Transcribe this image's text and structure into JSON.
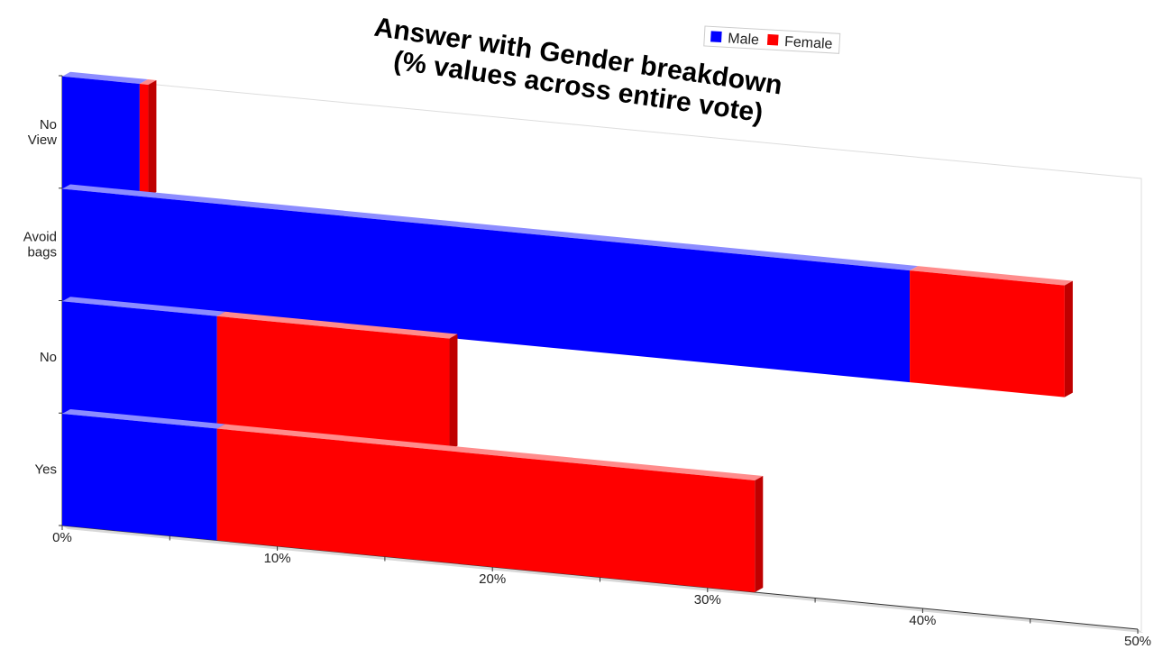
{
  "chart_data": {
    "type": "bar",
    "orientation": "horizontal",
    "stacked": true,
    "three_d": true,
    "title_lines": [
      "Answer with Gender breakdown",
      "(% values across entire vote)"
    ],
    "categories": [
      "No View",
      "Avoid bags",
      "No",
      "Yes"
    ],
    "series": [
      {
        "name": "Male",
        "color": "#0000ff",
        "values": [
          3.6,
          39.4,
          7.2,
          7.2
        ]
      },
      {
        "name": "Female",
        "color": "#ff0000",
        "values": [
          0.4,
          7.2,
          10.8,
          25.0
        ]
      }
    ],
    "xticks": [
      "0%",
      "10%",
      "20%",
      "30%",
      "40%",
      "50%"
    ],
    "xlim": [
      0,
      50
    ],
    "legend_position": "top-right",
    "grid": false
  }
}
